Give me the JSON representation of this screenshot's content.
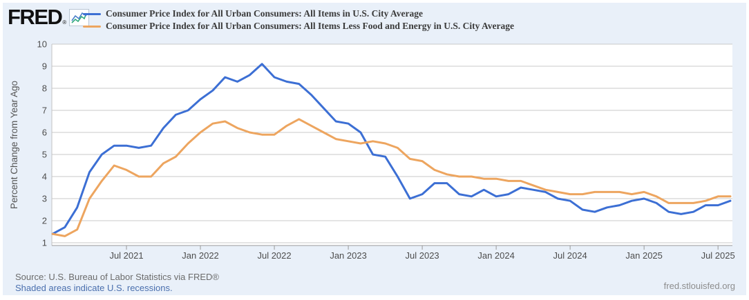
{
  "brand": {
    "logo_text": "FRED",
    "registered_mark": "®",
    "icon": "fred-sparkline-icon"
  },
  "footer": {
    "source": "Source: U.S. Bureau of Labor Statistics via FRED®",
    "recession_note": "Shaded areas indicate U.S. recessions.",
    "site": "fred.stlouisfed.org"
  },
  "colors": {
    "widget_bg": "#e9f0f9",
    "plot_bg": "#ffffff",
    "gridline": "#c9c9c9",
    "axis_line": "#999999",
    "tick_text": "#4d4d4d",
    "series_all_items": "#3c6fd4",
    "series_core": "#eda55f"
  },
  "chart_data": {
    "type": "line",
    "title": "",
    "xlabel": "",
    "ylabel": "Percent Change from Year Ago",
    "ylim": [
      1,
      10
    ],
    "yticks": [
      1,
      2,
      3,
      4,
      5,
      6,
      7,
      8,
      9,
      10
    ],
    "grid": true,
    "legend_position": "top",
    "x": [
      "2021-01",
      "2021-02",
      "2021-03",
      "2021-04",
      "2021-05",
      "2021-06",
      "2021-07",
      "2021-08",
      "2021-09",
      "2021-10",
      "2021-11",
      "2021-12",
      "2022-01",
      "2022-02",
      "2022-03",
      "2022-04",
      "2022-05",
      "2022-06",
      "2022-07",
      "2022-08",
      "2022-09",
      "2022-10",
      "2022-11",
      "2022-12",
      "2023-01",
      "2023-02",
      "2023-03",
      "2023-04",
      "2023-05",
      "2023-06",
      "2023-07",
      "2023-08",
      "2023-09",
      "2023-10",
      "2023-11",
      "2023-12",
      "2024-01",
      "2024-02",
      "2024-03",
      "2024-04",
      "2024-05",
      "2024-06",
      "2024-07",
      "2024-08",
      "2024-09",
      "2024-10",
      "2024-11",
      "2024-12",
      "2025-01",
      "2025-02",
      "2025-03",
      "2025-04",
      "2025-05",
      "2025-06",
      "2025-07",
      "2025-08"
    ],
    "xtick_labels": [
      "Jul 2021",
      "Jan 2022",
      "Jul 2022",
      "Jan 2023",
      "Jul 2023",
      "Jan 2024",
      "Jul 2024",
      "Jan 2025",
      "Jul 2025"
    ],
    "xtick_index": [
      6,
      12,
      18,
      24,
      30,
      36,
      42,
      48,
      54
    ],
    "series": [
      {
        "name": "Consumer Price Index for All Urban Consumers: All Items in U.S. City Average",
        "color": "#3c6fd4",
        "values": [
          1.4,
          1.7,
          2.6,
          4.2,
          5.0,
          5.4,
          5.4,
          5.3,
          5.4,
          6.2,
          6.8,
          7.0,
          7.5,
          7.9,
          8.5,
          8.3,
          8.6,
          9.1,
          8.5,
          8.3,
          8.2,
          7.7,
          7.1,
          6.5,
          6.4,
          6.0,
          5.0,
          4.9,
          4.0,
          3.0,
          3.2,
          3.7,
          3.7,
          3.2,
          3.1,
          3.4,
          3.1,
          3.2,
          3.5,
          3.4,
          3.3,
          3.0,
          2.9,
          2.5,
          2.4,
          2.6,
          2.7,
          2.9,
          3.0,
          2.8,
          2.4,
          2.3,
          2.4,
          2.7,
          2.7,
          2.9
        ]
      },
      {
        "name": "Consumer Price Index for All Urban Consumers: All Items Less Food and Energy in U.S. City Average",
        "color": "#eda55f",
        "values": [
          1.4,
          1.3,
          1.6,
          3.0,
          3.8,
          4.5,
          4.3,
          4.0,
          4.0,
          4.6,
          4.9,
          5.5,
          6.0,
          6.4,
          6.5,
          6.2,
          6.0,
          5.9,
          5.9,
          6.3,
          6.6,
          6.3,
          6.0,
          5.7,
          5.6,
          5.5,
          5.6,
          5.5,
          5.3,
          4.8,
          4.7,
          4.3,
          4.1,
          4.0,
          4.0,
          3.9,
          3.9,
          3.8,
          3.8,
          3.6,
          3.4,
          3.3,
          3.2,
          3.2,
          3.3,
          3.3,
          3.3,
          3.2,
          3.3,
          3.1,
          2.8,
          2.8,
          2.8,
          2.9,
          3.1,
          3.1
        ]
      }
    ]
  }
}
